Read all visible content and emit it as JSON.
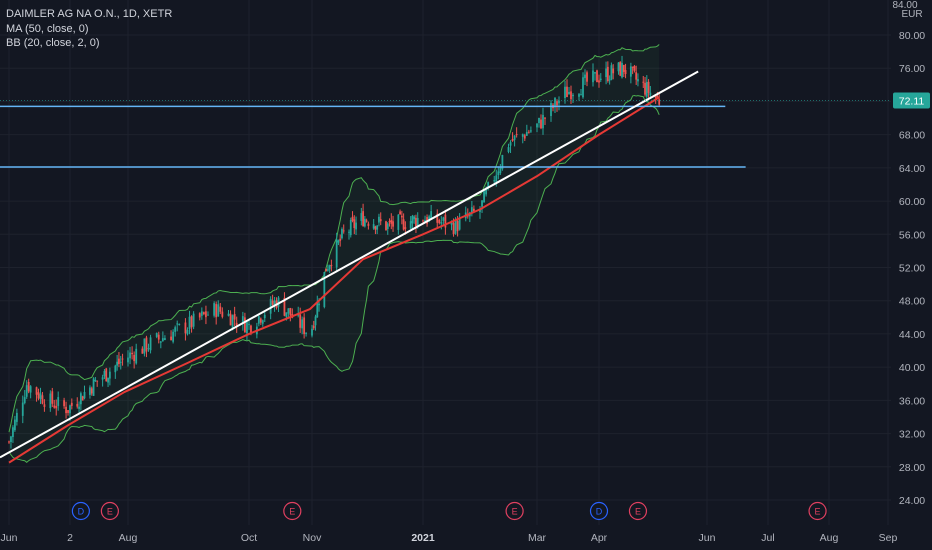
{
  "legend": {
    "symbol": "DAIMLER AG NA O.N., 1D, XETR",
    "ma": "MA (50, close, 0)",
    "bb": "BB (20, close, 2, 0)"
  },
  "axis": {
    "unit_top": "84.00",
    "currency": "EUR"
  },
  "last_price": "72.11",
  "colors": {
    "background": "#131722",
    "up": "#26a69a",
    "down": "#ef5350",
    "ma": "#e53935",
    "bands": "#4caf50",
    "trendline": "#ffffff",
    "hline": "#64b5f6",
    "price_tag": "#26a69a",
    "dividend_event": "#2962ff",
    "earnings_event": "#e04060"
  },
  "chart_data": {
    "type": "candlestick",
    "title": "DAIMLER AG NA O.N., 1D, XETR",
    "currency": "EUR",
    "ylim": [
      22,
      84
    ],
    "yticks": [
      24,
      28,
      32,
      36,
      40,
      44,
      48,
      52,
      56,
      60,
      64,
      68,
      72,
      76,
      80
    ],
    "ytick_labels": [
      "24.00",
      "28.00",
      "32.00",
      "36.00",
      "40.00",
      "44.00",
      "48.00",
      "52.00",
      "56.00",
      "60.00",
      "64.00",
      "68.00",
      "72.00",
      "76.00",
      "80.00"
    ],
    "xtick_labels": [
      {
        "label": "Jun",
        "date": "2020-06-01"
      },
      {
        "label": "2",
        "date": "2020-07-02"
      },
      {
        "label": "Aug",
        "date": "2020-08-03"
      },
      {
        "label": "Oct",
        "date": "2020-10-01"
      },
      {
        "label": "Nov",
        "date": "2020-11-02"
      },
      {
        "label": "2021",
        "date": "2021-01-04",
        "bold": true
      },
      {
        "label": "Mar",
        "date": "2021-03-01"
      },
      {
        "label": "Apr",
        "date": "2021-04-01"
      },
      {
        "label": "Jun",
        "date": "2021-06-01"
      },
      {
        "label": "Jul",
        "date": "2021-07-01"
      },
      {
        "label": "Aug",
        "date": "2021-08-02"
      },
      {
        "label": "Sep",
        "date": "2021-09-01"
      }
    ],
    "close_series": [
      {
        "date": "2020-06-01",
        "close": 31
      },
      {
        "date": "2020-06-10",
        "close": 38
      },
      {
        "date": "2020-06-20",
        "close": 36
      },
      {
        "date": "2020-07-01",
        "close": 35
      },
      {
        "date": "2020-07-15",
        "close": 38
      },
      {
        "date": "2020-08-01",
        "close": 41
      },
      {
        "date": "2020-08-15",
        "close": 43
      },
      {
        "date": "2020-09-01",
        "close": 45
      },
      {
        "date": "2020-09-15",
        "close": 47
      },
      {
        "date": "2020-10-01",
        "close": 45
      },
      {
        "date": "2020-10-15",
        "close": 48
      },
      {
        "date": "2020-11-01",
        "close": 44
      },
      {
        "date": "2020-11-10",
        "close": 52
      },
      {
        "date": "2020-11-20",
        "close": 56
      },
      {
        "date": "2020-12-01",
        "close": 58
      },
      {
        "date": "2020-12-15",
        "close": 57
      },
      {
        "date": "2021-01-04",
        "close": 58
      },
      {
        "date": "2021-01-20",
        "close": 57
      },
      {
        "date": "2021-02-01",
        "close": 59
      },
      {
        "date": "2021-02-15",
        "close": 67
      },
      {
        "date": "2021-03-01",
        "close": 69
      },
      {
        "date": "2021-03-15",
        "close": 73
      },
      {
        "date": "2021-04-01",
        "close": 75
      },
      {
        "date": "2021-04-15",
        "close": 76
      },
      {
        "date": "2021-04-25",
        "close": 74
      },
      {
        "date": "2021-05-05",
        "close": 72.11
      }
    ],
    "moving_average": {
      "name": "MA (50, close, 0)",
      "points": [
        {
          "date": "2020-06-01",
          "value": 28.5
        },
        {
          "date": "2020-07-01",
          "value": 33
        },
        {
          "date": "2020-08-01",
          "value": 37
        },
        {
          "date": "2020-09-01",
          "value": 40.5
        },
        {
          "date": "2020-10-01",
          "value": 44
        },
        {
          "date": "2020-11-01",
          "value": 47
        },
        {
          "date": "2020-12-01",
          "value": 53
        },
        {
          "date": "2021-01-04",
          "value": 56
        },
        {
          "date": "2021-02-01",
          "value": 59
        },
        {
          "date": "2021-03-01",
          "value": 63
        },
        {
          "date": "2021-04-01",
          "value": 68
        },
        {
          "date": "2021-05-05",
          "value": 72.5
        }
      ]
    },
    "horizontal_lines": [
      {
        "value": 71.4,
        "from": "2020-06-01",
        "to": "2021-06-10"
      },
      {
        "value": 64.1,
        "from": "2020-06-01",
        "to": "2021-06-20"
      }
    ],
    "trendline": {
      "from": {
        "date": "2020-06-01",
        "value": 29.5
      },
      "to": {
        "date": "2021-05-27",
        "value": 75.6
      }
    },
    "events": [
      {
        "type": "D",
        "date": "2020-07-08"
      },
      {
        "type": "E",
        "date": "2020-07-24"
      },
      {
        "type": "E",
        "date": "2020-10-23"
      },
      {
        "type": "E",
        "date": "2021-02-18"
      },
      {
        "type": "D",
        "date": "2021-04-01"
      },
      {
        "type": "E",
        "date": "2021-04-23"
      },
      {
        "type": "E",
        "date": "2021-07-27"
      }
    ]
  }
}
